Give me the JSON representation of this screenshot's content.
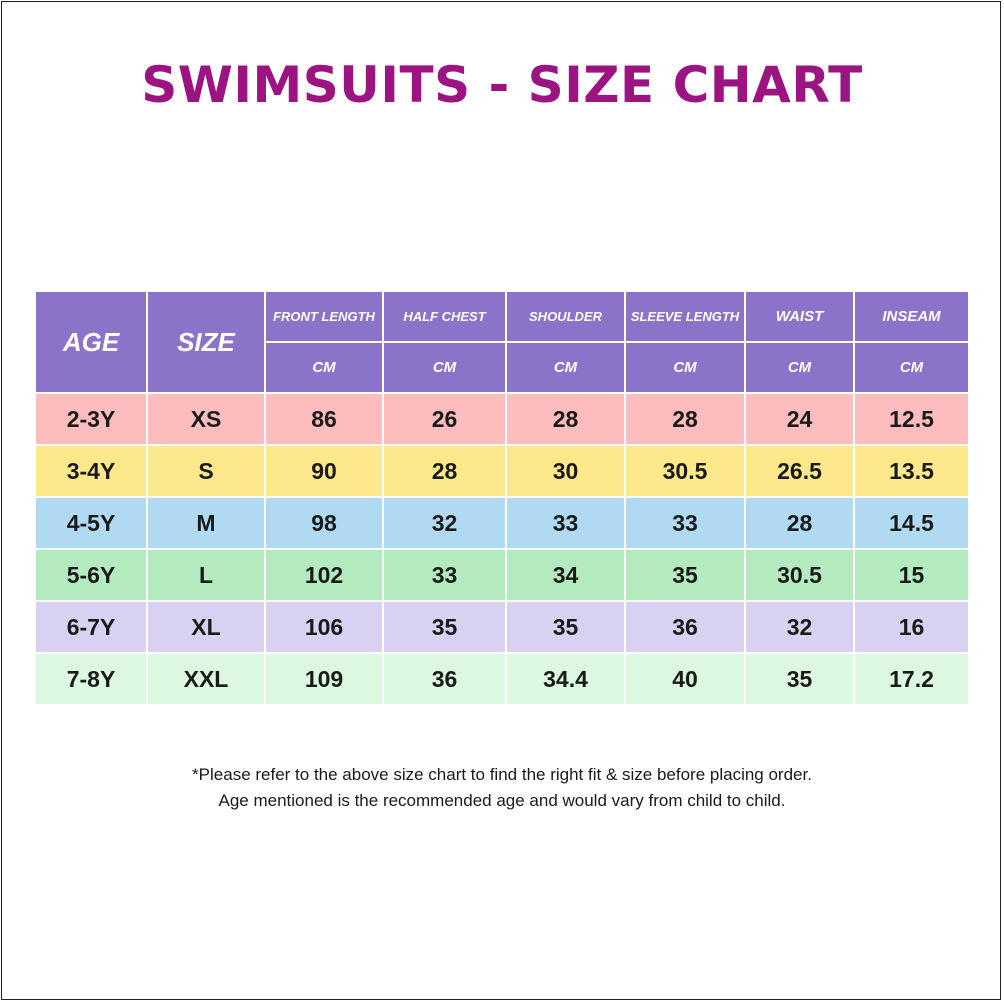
{
  "title": "SWIMSUITS - SIZE CHART",
  "table": {
    "headers": {
      "age": "AGE",
      "size": "SIZE",
      "measurements": [
        "FRONT LENGTH",
        "HALF CHEST",
        "SHOULDER",
        "SLEEVE LENGTH",
        "WAIST",
        "INSEAM"
      ],
      "unit": "CM"
    },
    "header_color": "#8b73c9",
    "rows": [
      {
        "age": "2-3Y",
        "size": "XS",
        "values": [
          "86",
          "26",
          "28",
          "28",
          "24",
          "12.5"
        ],
        "color": "#fdbcbe"
      },
      {
        "age": "3-4Y",
        "size": "S",
        "values": [
          "90",
          "28",
          "30",
          "30.5",
          "26.5",
          "13.5"
        ],
        "color": "#fde98c"
      },
      {
        "age": "4-5Y",
        "size": "M",
        "values": [
          "98",
          "32",
          "33",
          "33",
          "28",
          "14.5"
        ],
        "color": "#b0daf1"
      },
      {
        "age": "5-6Y",
        "size": "L",
        "values": [
          "102",
          "33",
          "34",
          "35",
          "30.5",
          "15"
        ],
        "color": "#b3ebbe"
      },
      {
        "age": "6-7Y",
        "size": "XL",
        "values": [
          "106",
          "35",
          "35",
          "36",
          "32",
          "16"
        ],
        "color": "#d9d1f2"
      },
      {
        "age": "7-8Y",
        "size": "XXL",
        "values": [
          "109",
          "36",
          "34.4",
          "40",
          "35",
          "17.2"
        ],
        "color": "#ddf8e0"
      }
    ]
  },
  "notes": [
    "*Please refer to the above size chart to find the right fit & size before placing order.",
    "Age mentioned is the recommended age and would vary from child to child."
  ],
  "title_color": "#9b1482"
}
